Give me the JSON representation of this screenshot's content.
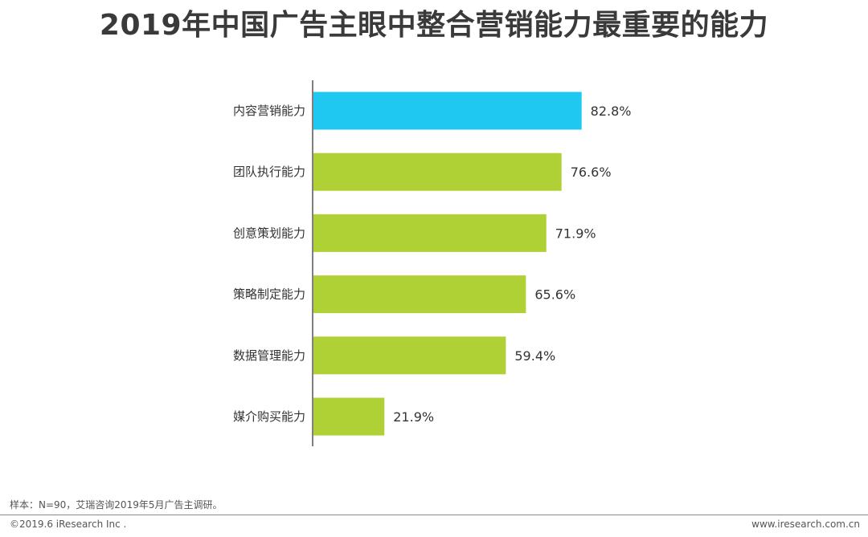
{
  "title": "2019年中国广告主眼中整合营销能力最重要的能力",
  "chart_data": {
    "type": "bar",
    "orientation": "horizontal",
    "categories": [
      "内容营销能力",
      "团队执行能力",
      "创意策划能力",
      "策略制定能力",
      "数据管理能力",
      "媒介购买能力"
    ],
    "values": [
      82.8,
      76.6,
      71.9,
      65.6,
      59.4,
      21.9
    ],
    "value_labels": [
      "82.8%",
      "76.6%",
      "71.9%",
      "65.6%",
      "59.4%",
      "21.9%"
    ],
    "unit": "%",
    "xlim": [
      0,
      100
    ],
    "grid": false,
    "colors": {
      "highlight": "#1ec8f0",
      "default": "#b0d136"
    },
    "highlight_index": 0
  },
  "footnote": "样本：N=90，艾瑞咨询2019年5月广告主调研。",
  "copyright": "©2019.6 iResearch Inc .",
  "website": "www.iresearch.com.cn"
}
